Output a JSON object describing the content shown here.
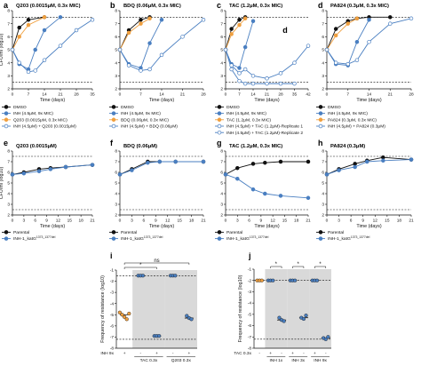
{
  "chart_data": [
    {
      "id": "a",
      "type": "line",
      "title": "Q203 (0.0015μM, 0.3x MIC)",
      "xlabel": "Time (days)",
      "ylabel": "CFU/ml (log10)",
      "xlim": [
        0,
        35
      ],
      "xticks": [
        0,
        7,
        14,
        21,
        28,
        35
      ],
      "ylim": [
        2,
        8
      ],
      "yticks": [
        2,
        3,
        4,
        5,
        6,
        7,
        8
      ],
      "hlines": [
        7.5,
        2.5
      ],
      "series": [
        {
          "name": "DMSO",
          "color": "#111111",
          "fill": "#111111",
          "x": [
            0,
            3,
            7,
            14
          ],
          "y": [
            5.0,
            6.7,
            7.3,
            7.5
          ]
        },
        {
          "name": "INH (4.5μM, 9x MIC)",
          "color": "#4a7fc1",
          "fill": "#4a7fc1",
          "x": [
            0,
            3,
            7,
            10,
            14,
            21
          ],
          "y": [
            5.0,
            3.9,
            3.5,
            5.0,
            6.5,
            7.5
          ]
        },
        {
          "name": "Q203 (0.0015μM, 0.3x MIC)",
          "color": "#f0a040",
          "fill": "#f0a040",
          "x": [
            0,
            3,
            7,
            14
          ],
          "y": [
            5.0,
            6.0,
            6.9,
            7.5
          ]
        },
        {
          "name": "INH (4.5μM) + Q203 (0.0015μM)",
          "color": "#4a7fc1",
          "fill": "#ffffff",
          "x": [
            0,
            3,
            7,
            10,
            14,
            21,
            28,
            35
          ],
          "y": [
            5.0,
            4.0,
            3.3,
            3.4,
            4.2,
            5.3,
            6.5,
            7.3
          ]
        }
      ]
    },
    {
      "id": "b",
      "type": "line",
      "title": "BDQ (0.06μM, 0.3x MIC)",
      "xlabel": "Time (days)",
      "ylabel": "",
      "xlim": [
        0,
        28
      ],
      "xticks": [
        0,
        7,
        14,
        21,
        28
      ],
      "ylim": [
        2,
        8
      ],
      "yticks": [
        2,
        3,
        4,
        5,
        6,
        7,
        8
      ],
      "hlines": [
        7.5,
        2.5
      ],
      "series": [
        {
          "name": "DMSO",
          "color": "#111111",
          "fill": "#111111",
          "x": [
            0,
            3,
            7,
            10
          ],
          "y": [
            5.0,
            6.5,
            7.3,
            7.5
          ]
        },
        {
          "name": "INH (4.5μM, 9x MIC)",
          "color": "#4a7fc1",
          "fill": "#4a7fc1",
          "x": [
            0,
            3,
            7,
            10,
            14
          ],
          "y": [
            5.0,
            3.9,
            3.6,
            5.5,
            7.3
          ]
        },
        {
          "name": "BDQ (0.06μM, 0.3x MIC)",
          "color": "#f0a040",
          "fill": "#f0a040",
          "x": [
            0,
            3,
            7,
            10
          ],
          "y": [
            5.0,
            6.3,
            7.0,
            7.4
          ]
        },
        {
          "name": "INH (4.5μM) + BDQ (0.06μM)",
          "color": "#4a7fc1",
          "fill": "#ffffff",
          "x": [
            0,
            3,
            7,
            10,
            14,
            21,
            28
          ],
          "y": [
            5.0,
            3.8,
            3.4,
            3.5,
            4.6,
            6.0,
            7.3
          ]
        }
      ]
    },
    {
      "id": "c",
      "type": "line",
      "title": "TAC (1.2μM, 0.3x MIC)",
      "xlabel": "Time (days)",
      "ylabel": "",
      "xlim": [
        0,
        42
      ],
      "xticks": [
        0,
        7,
        14,
        21,
        28,
        35,
        42
      ],
      "ylim": [
        2,
        8
      ],
      "yticks": [
        2,
        3,
        4,
        5,
        6,
        7,
        8
      ],
      "hlines": [
        7.5,
        2.5
      ],
      "annotation": "d",
      "series": [
        {
          "name": "DMSO",
          "color": "#111111",
          "fill": "#111111",
          "x": [
            0,
            3,
            7,
            10
          ],
          "y": [
            5.0,
            6.6,
            7.3,
            7.5
          ]
        },
        {
          "name": "INH (4.5μM, 9x MIC)",
          "color": "#4a7fc1",
          "fill": "#4a7fc1",
          "x": [
            0,
            3,
            7,
            10,
            14
          ],
          "y": [
            5.0,
            3.9,
            3.6,
            5.2,
            7.2
          ]
        },
        {
          "name": "TAC (1.2μM, 0.3x MIC)",
          "color": "#f0a040",
          "fill": "#f0a040",
          "x": [
            0,
            3,
            7,
            10
          ],
          "y": [
            5.0,
            6.2,
            6.9,
            7.4
          ]
        },
        {
          "name": "INH (4.5μM) + TAC (1.2μM)-Replicate 1",
          "color": "#4a7fc1",
          "fill": "#ffffff",
          "x": [
            0,
            3,
            7,
            10,
            14,
            21,
            28,
            35
          ],
          "y": [
            5.0,
            3.5,
            2.6,
            2.4,
            2.4,
            2.4,
            2.4,
            2.4
          ]
        },
        {
          "name": "INH (4.5μM) + TAC (1.2μM)-Replicate 2",
          "color": "#4a7fc1",
          "fill": "#ffffff",
          "x": [
            0,
            3,
            7,
            10,
            14,
            21,
            28,
            35,
            42
          ],
          "y": [
            5.0,
            3.8,
            3.2,
            3.5,
            3.0,
            2.8,
            3.2,
            4.0,
            5.3
          ]
        }
      ]
    },
    {
      "id": "d",
      "type": "line",
      "title": "PA824 (0.3μM, 0.3x MIC)",
      "xlabel": "Time (days)",
      "ylabel": "",
      "xlim": [
        0,
        28
      ],
      "xticks": [
        0,
        7,
        14,
        21,
        28
      ],
      "ylim": [
        2,
        8
      ],
      "yticks": [
        2,
        3,
        4,
        5,
        6,
        7,
        8
      ],
      "hlines": [
        7.5,
        2.5
      ],
      "series": [
        {
          "name": "DMSO",
          "color": "#111111",
          "fill": "#111111",
          "x": [
            0,
            3,
            7,
            10,
            14,
            21
          ],
          "y": [
            5.0,
            6.6,
            7.2,
            7.4,
            7.5,
            7.5
          ]
        },
        {
          "name": "INH (4.5μM, 9x MIC)",
          "color": "#4a7fc1",
          "fill": "#4a7fc1",
          "x": [
            0,
            3,
            7,
            10,
            14
          ],
          "y": [
            5.0,
            3.9,
            3.8,
            5.6,
            7.3
          ]
        },
        {
          "name": "PA824 (0.3μM, 0.3x MIC)",
          "color": "#f0a040",
          "fill": "#f0a040",
          "x": [
            0,
            3,
            7,
            10
          ],
          "y": [
            5.0,
            6.1,
            7.0,
            7.4
          ]
        },
        {
          "name": "INH (4.5μM) + PA824 (0.3μM)",
          "color": "#4a7fc1",
          "fill": "#ffffff",
          "x": [
            0,
            3,
            7,
            10,
            14,
            21,
            28
          ],
          "y": [
            5.0,
            4.0,
            3.9,
            4.2,
            5.6,
            7.0,
            7.4
          ]
        }
      ]
    },
    {
      "id": "e",
      "type": "line",
      "title": "Q203 (0.0015μM)",
      "xlabel": "Time (days)",
      "ylabel": "CFU/ml (log10)",
      "xlim": [
        0,
        21
      ],
      "xticks": [
        0,
        3,
        6,
        9,
        12,
        15,
        18,
        21
      ],
      "ylim": [
        2,
        8
      ],
      "yticks": [
        2,
        3,
        4,
        5,
        6,
        7,
        8
      ],
      "hlines": [
        7.5,
        2.5
      ],
      "series": [
        {
          "name": "Parental",
          "color": "#111111",
          "fill": "#111111",
          "x": [
            0,
            3,
            7,
            10,
            14,
            21
          ],
          "y": [
            5.8,
            6.0,
            6.3,
            6.4,
            6.5,
            6.7
          ]
        },
        {
          "name": "INH-1_katG",
          "sup": "1373_1377del",
          "color": "#4a7fc1",
          "fill": "#4a7fc1",
          "x": [
            0,
            3,
            7,
            10,
            14,
            21
          ],
          "y": [
            5.8,
            5.9,
            6.1,
            6.3,
            6.5,
            6.7
          ]
        }
      ]
    },
    {
      "id": "f",
      "type": "line",
      "title": "BDQ (0.06μM)",
      "xlabel": "Time (days)",
      "ylabel": "",
      "xlim": [
        0,
        21
      ],
      "xticks": [
        0,
        3,
        6,
        9,
        12,
        15,
        18,
        21
      ],
      "ylim": [
        2,
        8
      ],
      "yticks": [
        2,
        3,
        4,
        5,
        6,
        7,
        8
      ],
      "hlines": [
        7.5,
        2.5
      ],
      "series": [
        {
          "name": "Parental",
          "color": "#111111",
          "fill": "#111111",
          "x": [
            0,
            3,
            7,
            10,
            14,
            21
          ],
          "y": [
            5.8,
            6.3,
            7.0,
            7.0,
            7.0,
            7.0
          ]
        },
        {
          "name": "INH-1_katG",
          "sup": "1373_1377del",
          "color": "#4a7fc1",
          "fill": "#4a7fc1",
          "x": [
            0,
            3,
            7,
            10,
            14,
            21
          ],
          "y": [
            5.8,
            6.2,
            6.9,
            7.0,
            7.0,
            7.0
          ]
        }
      ]
    },
    {
      "id": "g",
      "type": "line",
      "title": "TAC (1.2μM, 0.3x MIC)",
      "xlabel": "Time (days)",
      "ylabel": "",
      "xlim": [
        0,
        21
      ],
      "xticks": [
        0,
        3,
        6,
        9,
        12,
        15,
        18,
        21
      ],
      "ylim": [
        2,
        8
      ],
      "yticks": [
        2,
        3,
        4,
        5,
        6,
        7,
        8
      ],
      "hlines": [
        7.5,
        2.5
      ],
      "series": [
        {
          "name": "Parental",
          "color": "#111111",
          "fill": "#111111",
          "x": [
            0,
            3,
            7,
            10,
            14,
            21
          ],
          "y": [
            5.8,
            6.4,
            6.8,
            6.9,
            7.0,
            7.0
          ]
        },
        {
          "name": "INH-1_katG",
          "sup": "1373_1377del",
          "color": "#4a7fc1",
          "fill": "#4a7fc1",
          "x": [
            0,
            3,
            7,
            10,
            14,
            21
          ],
          "y": [
            5.8,
            5.4,
            4.4,
            4.0,
            3.8,
            3.6
          ]
        }
      ]
    },
    {
      "id": "h",
      "type": "line",
      "title": "PA824 (0.3μM)",
      "xlabel": "Time (days)",
      "ylabel": "",
      "xlim": [
        0,
        21
      ],
      "xticks": [
        0,
        3,
        6,
        9,
        12,
        15,
        18,
        21
      ],
      "ylim": [
        2,
        8
      ],
      "yticks": [
        2,
        3,
        4,
        5,
        6,
        7,
        8
      ],
      "hlines": [
        7.5,
        2.5
      ],
      "series": [
        {
          "name": "Parental",
          "color": "#111111",
          "fill": "#111111",
          "x": [
            0,
            3,
            7,
            10,
            14,
            21
          ],
          "y": [
            5.8,
            6.3,
            6.8,
            7.1,
            7.4,
            7.2
          ]
        },
        {
          "name": "INH-1_katG",
          "sup": "1373_1377del",
          "color": "#4a7fc1",
          "fill": "#4a7fc1",
          "x": [
            0,
            3,
            7,
            10,
            14,
            21
          ],
          "y": [
            5.8,
            6.2,
            6.5,
            7.0,
            7.1,
            7.2
          ]
        }
      ]
    },
    {
      "id": "i",
      "type": "scatter",
      "ylabel": "Frequency of resistance (log10)",
      "ylim": [
        -8,
        -1
      ],
      "yticks": [
        -1,
        -2,
        -3,
        -4,
        -5,
        -6,
        -7,
        -8
      ],
      "hlines": [
        -7.2,
        -1.5
      ],
      "row_labels": [
        "INH 9x"
      ],
      "row_values": [
        "+",
        "-",
        "+",
        "-",
        "+"
      ],
      "group_labels": [
        "TAC 0.3x",
        "Q203 0.3x"
      ],
      "significance": [
        "*",
        "ns"
      ],
      "groups": [
        {
          "color": "#f0a040",
          "values": [
            -4.8,
            -5.0,
            -5.2,
            -5.4,
            -4.9
          ]
        },
        {
          "color": "#4a7fc1",
          "values": [
            -1.5,
            -1.5,
            -1.5
          ]
        },
        {
          "color": "#4a7fc1",
          "values": [
            -6.9,
            -6.9,
            -6.9
          ]
        },
        {
          "color": "#4a7fc1",
          "values": [
            -1.5,
            -1.5,
            -1.5
          ]
        },
        {
          "color": "#4a7fc1",
          "values": [
            -5.1,
            -5.3,
            -5.4
          ]
        }
      ]
    },
    {
      "id": "j",
      "type": "scatter",
      "ylabel": "Frequency of resistance (log10)",
      "ylim": [
        -8,
        -1
      ],
      "yticks": [
        -1,
        -2,
        -3,
        -4,
        -5,
        -6,
        -7,
        -8
      ],
      "hlines": [
        -7.2,
        -2.0
      ],
      "row_labels": [
        "TAC 0.3x"
      ],
      "row_values": [
        "-",
        "+",
        "-",
        "+",
        "-",
        "+",
        "-"
      ],
      "group_labels": [
        "INH 1x",
        "INH 3x",
        "INH 9x"
      ],
      "significance": [
        "*",
        "*",
        "*"
      ],
      "groups": [
        {
          "color": "#f0a040",
          "values": [
            -2.0,
            -2.0,
            -2.0
          ]
        },
        {
          "color": "#4a7fc1",
          "values": [
            -2.0,
            -2.0,
            -2.0
          ]
        },
        {
          "color": "#4a7fc1",
          "values": [
            -5.3,
            -5.5,
            -5.6
          ]
        },
        {
          "color": "#4a7fc1",
          "values": [
            -2.0,
            -2.0,
            -2.0
          ]
        },
        {
          "color": "#4a7fc1",
          "values": [
            -5.3,
            -5.4,
            -5.1
          ]
        },
        {
          "color": "#4a7fc1",
          "values": [
            -2.0,
            -2.0,
            -2.0
          ]
        },
        {
          "color": "#4a7fc1",
          "values": [
            -7.1,
            -7.2,
            -7.0
          ]
        }
      ]
    }
  ]
}
